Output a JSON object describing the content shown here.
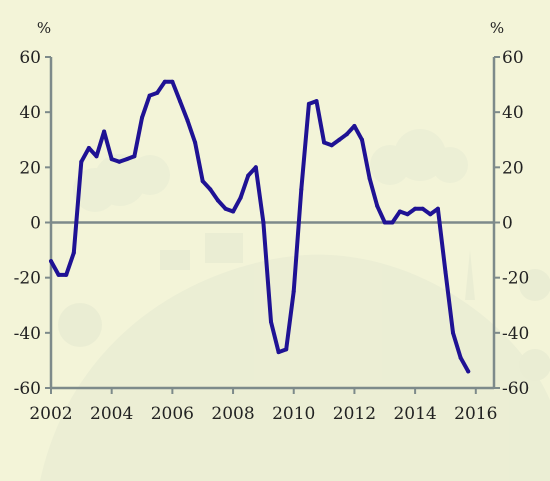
{
  "chart_data": {
    "type": "line",
    "title": "",
    "xlabel": "",
    "ylabel": "%",
    "ylabel_right": "%",
    "xlim": [
      2002,
      2016.6
    ],
    "ylim": [
      -60,
      60
    ],
    "x_ticks": [
      "2002",
      "2004",
      "2006",
      "2008",
      "2010",
      "2012",
      "2014",
      "2016"
    ],
    "y_ticks": [
      "60",
      "40",
      "20",
      "0",
      "-20",
      "-40",
      "-60"
    ],
    "grid": false,
    "legend": "none",
    "colors": {
      "line": "#1f1294",
      "axis": "#7d8a8a",
      "zero_line": "#7d8a8a",
      "background": "#f3f4d8"
    },
    "series": [
      {
        "x": [
          2002.0,
          2002.25,
          2002.5,
          2002.75,
          2003.0,
          2003.25,
          2003.5,
          2003.75,
          2004.0,
          2004.25,
          2004.5,
          2004.75,
          2005.0,
          2005.25,
          2005.5,
          2005.75,
          2006.0,
          2006.25,
          2006.5,
          2006.75,
          2007.0,
          2007.25,
          2007.5,
          2007.75,
          2008.0,
          2008.25,
          2008.5,
          2008.75,
          2009.0,
          2009.25,
          2009.5,
          2009.75,
          2010.0,
          2010.25,
          2010.5,
          2010.75,
          2011.0,
          2011.25,
          2011.5,
          2011.75,
          2012.0,
          2012.25,
          2012.5,
          2012.75,
          2013.0,
          2013.25,
          2013.5,
          2013.75,
          2014.0,
          2014.25,
          2014.5,
          2014.75,
          2015.0,
          2015.25,
          2015.5,
          2015.75
        ],
        "values": [
          -14,
          -19,
          -19,
          -11,
          22,
          27,
          24,
          33,
          23,
          22,
          23,
          24,
          38,
          46,
          47,
          51,
          51,
          44,
          37,
          29,
          15,
          12,
          8,
          5,
          4,
          9,
          17,
          20,
          0,
          -36,
          -47,
          -46,
          -25,
          12,
          43,
          44,
          29,
          28,
          30,
          32,
          35,
          30,
          16,
          6,
          0,
          0,
          4,
          3,
          5,
          5,
          3,
          5,
          -18,
          -40,
          -49,
          -54
        ]
      }
    ]
  }
}
